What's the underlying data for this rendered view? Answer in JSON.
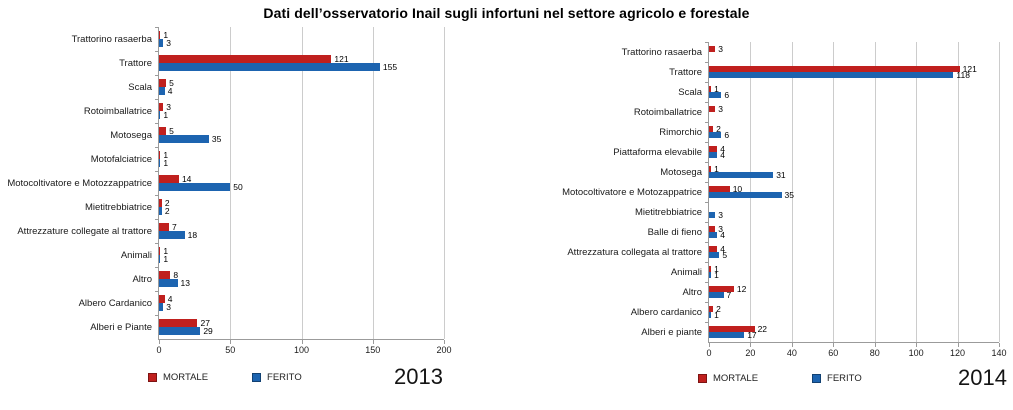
{
  "title": "Dati dell’osservatorio Inail sugli infortuni nel settore agricolo e forestale",
  "colors": {
    "mortale": "#c0201e",
    "ferito": "#1d64b0",
    "gridline": "#cccccc",
    "axis": "#9b9b9b"
  },
  "chart_data": [
    {
      "type": "bar",
      "orientation": "horizontal",
      "year_label": "2013",
      "legend_position": "bottom",
      "grid": true,
      "xlim": [
        0,
        200
      ],
      "xticks": [
        0,
        50,
        100,
        150,
        200
      ],
      "categories": [
        "Trattorino rasaerba",
        "Trattore",
        "Scala",
        "Rotoimballatrice",
        "Motosega",
        "Motofalciatrice",
        "Motocoltivatore e Motozzappatrice",
        "Mietitrebbiatrice",
        "Attrezzature collegate al trattore",
        "Animali",
        "Altro",
        "Albero Cardanico",
        "Alberi e Piante"
      ],
      "series": [
        {
          "name": "MORTALE",
          "color": "#c0201e",
          "values": [
            1,
            121,
            5,
            3,
            5,
            1,
            14,
            2,
            7,
            1,
            8,
            4,
            27
          ]
        },
        {
          "name": "FERITO",
          "color": "#1d64b0",
          "values": [
            3,
            155,
            4,
            1,
            35,
            1,
            50,
            2,
            18,
            1,
            13,
            3,
            29
          ]
        }
      ]
    },
    {
      "type": "bar",
      "orientation": "horizontal",
      "year_label": "2014",
      "legend_position": "bottom",
      "grid": true,
      "xlim": [
        0,
        140
      ],
      "xticks": [
        0,
        20,
        40,
        60,
        80,
        100,
        120,
        140
      ],
      "categories": [
        "Trattorino rasaerba",
        "Trattore",
        "Scala",
        "Rotoimballatrice",
        "Rimorchio",
        "Piattaforma elevabile",
        "Motosega",
        "Motocoltivatore e Motozappatrice",
        "Mietitrebbiatrice",
        "Balle di fieno",
        "Attrezzatura collegata al trattore",
        "Animali",
        "Altro",
        "Albero cardanico",
        "Alberi e piante"
      ],
      "series": [
        {
          "name": "MORTALE",
          "color": "#c0201e",
          "values": [
            3,
            121,
            1,
            3,
            2,
            4,
            1,
            10,
            0,
            3,
            4,
            1,
            12,
            2,
            22
          ]
        },
        {
          "name": "FERITO",
          "color": "#1d64b0",
          "values": [
            0,
            118,
            6,
            0,
            6,
            4,
            31,
            35,
            3,
            4,
            5,
            1,
            7,
            1,
            17
          ]
        }
      ]
    }
  ]
}
